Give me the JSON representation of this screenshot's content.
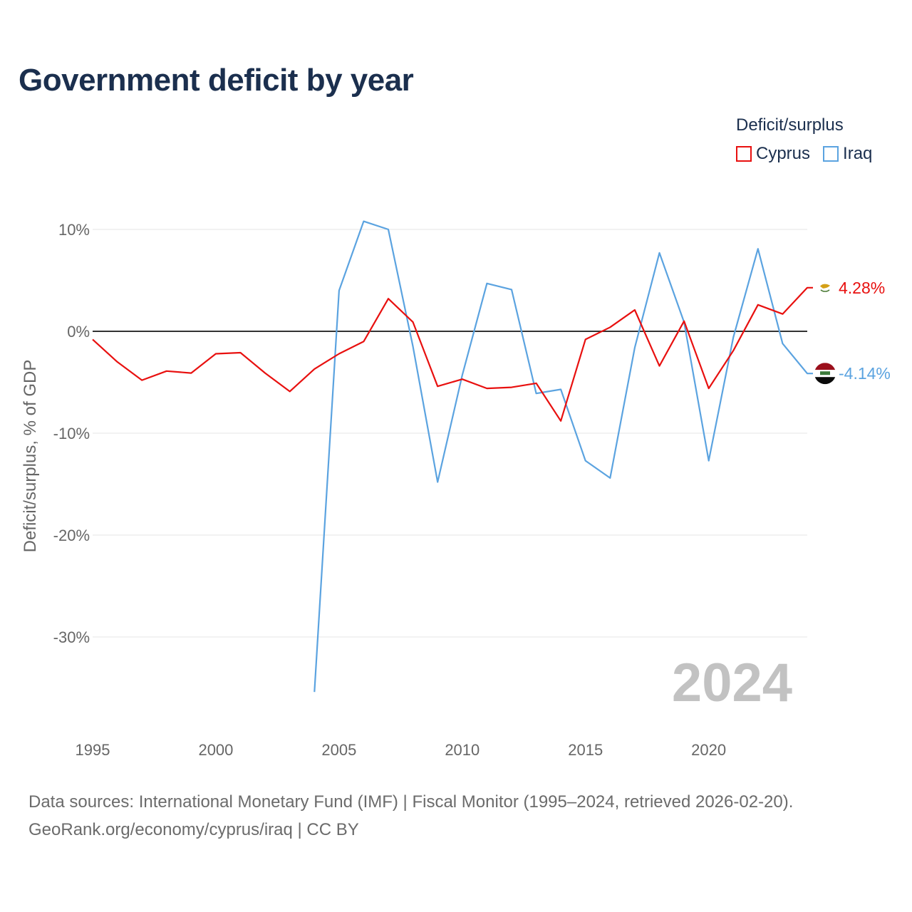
{
  "title": "Government deficit by year",
  "legend": {
    "title": "Deficit/surplus",
    "items": [
      {
        "label": "Cyprus",
        "color": "#e8100f"
      },
      {
        "label": "Iraq",
        "color": "#5ba3e0"
      }
    ]
  },
  "footer": {
    "line1": "Data sources: International Monetary Fund (IMF) | Fiscal Monitor (1995–2024, retrieved 2026-02-20).",
    "line2": "GeoRank.org/economy/cyprus/iraq | CC BY"
  },
  "chart_data": {
    "type": "line",
    "title": "Government deficit by year",
    "xlabel": "",
    "ylabel": "Deficit/surplus, % of GDP",
    "xlim": [
      1995,
      2024
    ],
    "ylim": [
      -36,
      11
    ],
    "yticks": [
      10,
      0,
      -10,
      -20,
      -30
    ],
    "ytick_labels": [
      "10%",
      "0%",
      "-10%",
      "-20%",
      "-30%"
    ],
    "xticks": [
      1995,
      2000,
      2005,
      2010,
      2015,
      2020
    ],
    "xtick_labels": [
      "1995",
      "2000",
      "2005",
      "2010",
      "2015",
      "2020"
    ],
    "year_watermark": "2024",
    "series": [
      {
        "name": "Cyprus",
        "color": "#e8100f",
        "end_label": "4.28%",
        "x": [
          1995,
          1996,
          1997,
          1998,
          1999,
          2000,
          2001,
          2002,
          2003,
          2004,
          2005,
          2006,
          2007,
          2008,
          2009,
          2010,
          2011,
          2012,
          2013,
          2014,
          2015,
          2016,
          2017,
          2018,
          2019,
          2020,
          2021,
          2022,
          2023,
          2024
        ],
        "values": [
          -0.8,
          -3.0,
          -4.8,
          -3.9,
          -4.1,
          -2.2,
          -2.1,
          -4.1,
          -5.9,
          -3.7,
          -2.2,
          -1.0,
          3.2,
          0.9,
          -5.4,
          -4.7,
          -5.6,
          -5.5,
          -5.1,
          -8.8,
          -0.8,
          0.4,
          2.1,
          -3.4,
          1.0,
          -5.6,
          -1.9,
          2.6,
          1.7,
          4.28
        ]
      },
      {
        "name": "Iraq",
        "color": "#5ba3e0",
        "end_label": "-4.14%",
        "x": [
          2004,
          2005,
          2006,
          2007,
          2008,
          2009,
          2010,
          2011,
          2012,
          2013,
          2014,
          2015,
          2016,
          2017,
          2018,
          2019,
          2020,
          2021,
          2022,
          2023,
          2024
        ],
        "values": [
          -35.4,
          4.0,
          10.8,
          10.0,
          -1.5,
          -14.8,
          -4.3,
          4.7,
          4.1,
          -6.1,
          -5.7,
          -12.7,
          -14.4,
          -1.6,
          7.7,
          0.9,
          -12.7,
          -0.6,
          8.1,
          -1.2,
          -4.14
        ]
      }
    ]
  }
}
